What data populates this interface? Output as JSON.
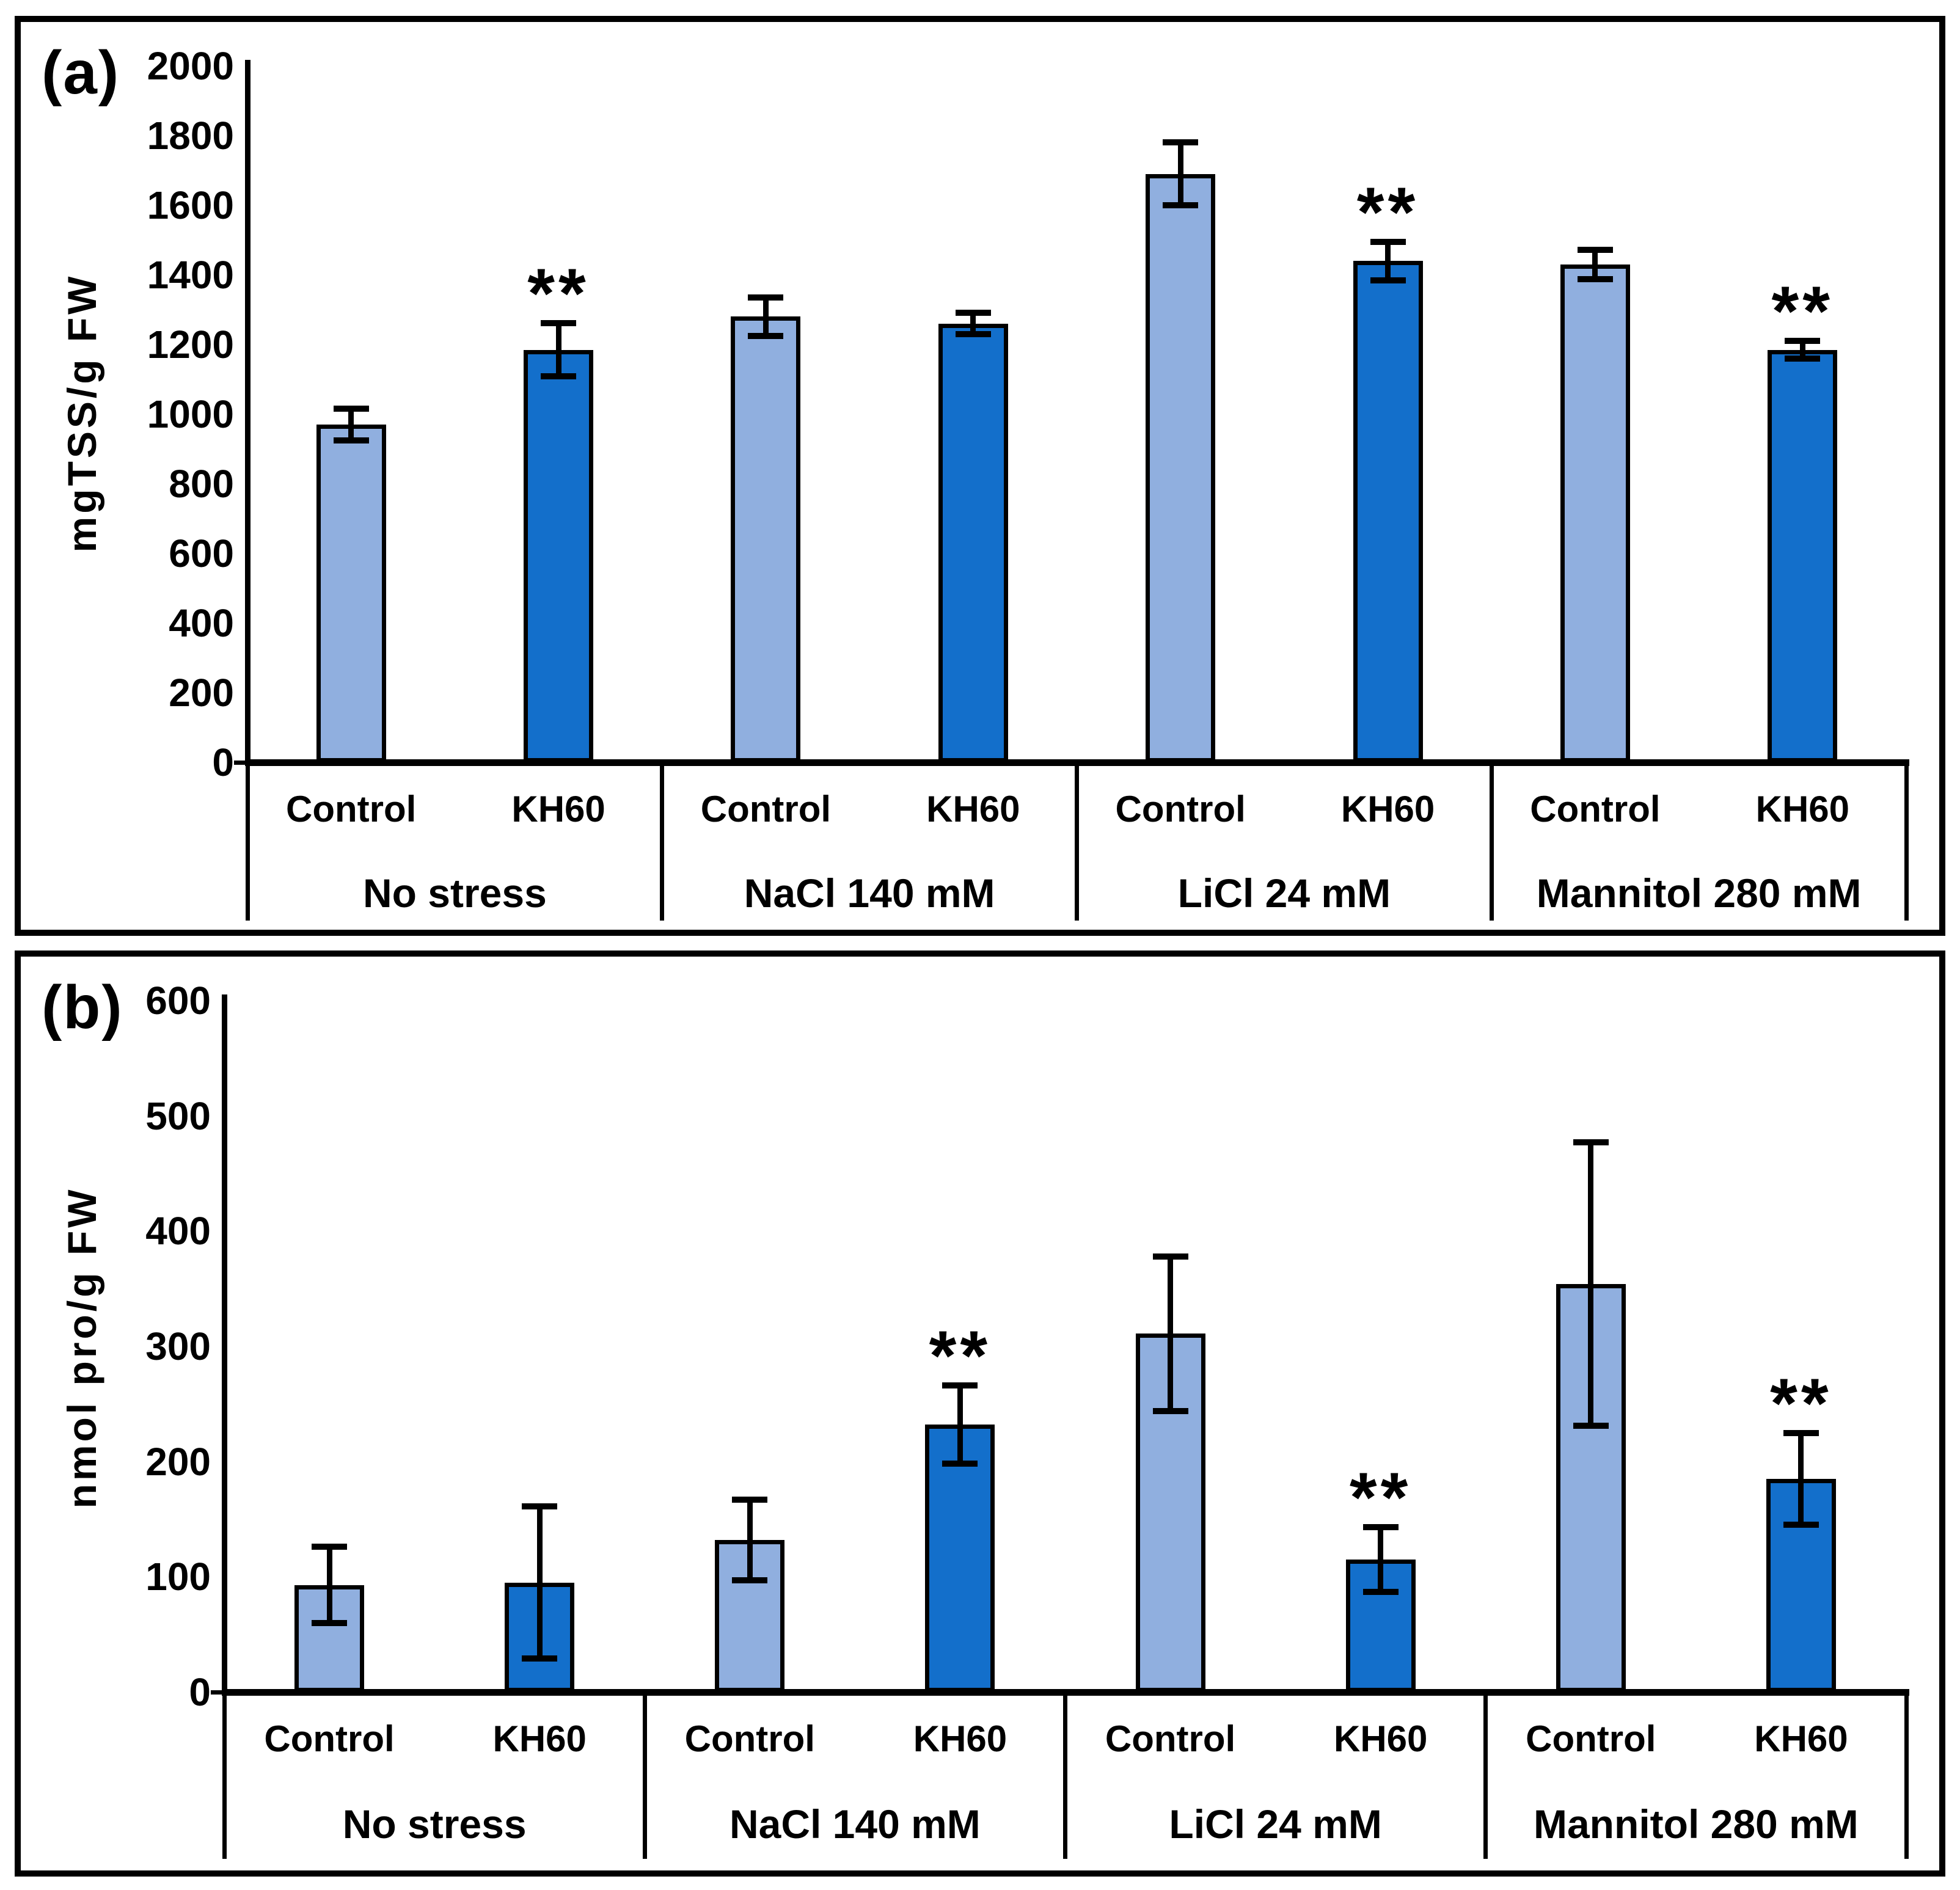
{
  "chart_data": [
    {
      "type": "bar",
      "panel_label": "(a)",
      "ylabel": "mgTSS/g FW",
      "xlabel": "",
      "ylim": [
        0,
        2000
      ],
      "ytick_step": 200,
      "grid": false,
      "legend": "none",
      "categories": [
        "No stress",
        "NaCl 140 mM",
        "LiCl 24 mM",
        "Mannitol 280 mM"
      ],
      "bar_labels": [
        "Control",
        "KH60"
      ],
      "series": [
        {
          "name": "Control",
          "color": "#90AFDF",
          "values": [
            970,
            1280,
            1690,
            1430
          ],
          "errors": [
            45,
            55,
            90,
            42
          ],
          "significance": [
            "",
            "",
            "",
            ""
          ]
        },
        {
          "name": "KH60",
          "color": "#136FCB",
          "values": [
            1185,
            1260,
            1440,
            1185
          ],
          "errors": [
            77,
            31,
            55,
            26
          ],
          "significance": [
            "**",
            "",
            "**",
            "**"
          ]
        }
      ]
    },
    {
      "type": "bar",
      "panel_label": "(b)",
      "ylabel": "nmol pro/g FW",
      "xlabel": "",
      "ylim": [
        0,
        600
      ],
      "ytick_step": 100,
      "grid": false,
      "legend": "none",
      "categories": [
        "No stress",
        "NaCl 140 mM",
        "LiCl 24 mM",
        "Mannitol 280 mM"
      ],
      "bar_labels": [
        "Control",
        "KH60"
      ],
      "series": [
        {
          "name": "Control",
          "color": "#90AFDF",
          "values": [
            93,
            132,
            311,
            354
          ],
          "errors": [
            33,
            35,
            67,
            123
          ],
          "significance": [
            "",
            "",
            "",
            ""
          ]
        },
        {
          "name": "KH60",
          "color": "#136FCB",
          "values": [
            95,
            232,
            115,
            185
          ],
          "errors": [
            66,
            34,
            28,
            40
          ],
          "significance": [
            "",
            "**",
            "**",
            "**"
          ]
        }
      ]
    }
  ],
  "styles": {
    "axis_color": "#000000",
    "background": "#ffffff",
    "bar_light": "#90AFDF",
    "bar_dark": "#136FCB"
  }
}
